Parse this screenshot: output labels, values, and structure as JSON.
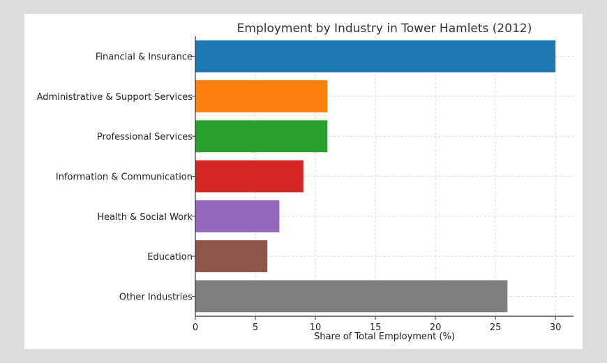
{
  "chart_data": {
    "type": "bar",
    "orientation": "horizontal",
    "title": "Employment by Industry in Tower Hamlets (2012)",
    "xlabel": "Share of Total Employment (%)",
    "ylabel": "",
    "xlim": [
      0,
      31.5
    ],
    "xticks": [
      0,
      5,
      10,
      15,
      20,
      25,
      30
    ],
    "grid": true,
    "categories": [
      "Financial & Insurance",
      "Administrative & Support Services",
      "Professional Services",
      "Information & Communication",
      "Health & Social Work",
      "Education",
      "Other Industries"
    ],
    "values": [
      30,
      11,
      11,
      9,
      7,
      6,
      26
    ],
    "colors": [
      "#1f77b4",
      "#ff7f0e",
      "#2ca02c",
      "#d62728",
      "#9467bd",
      "#8c564b",
      "#7f7f7f"
    ]
  }
}
